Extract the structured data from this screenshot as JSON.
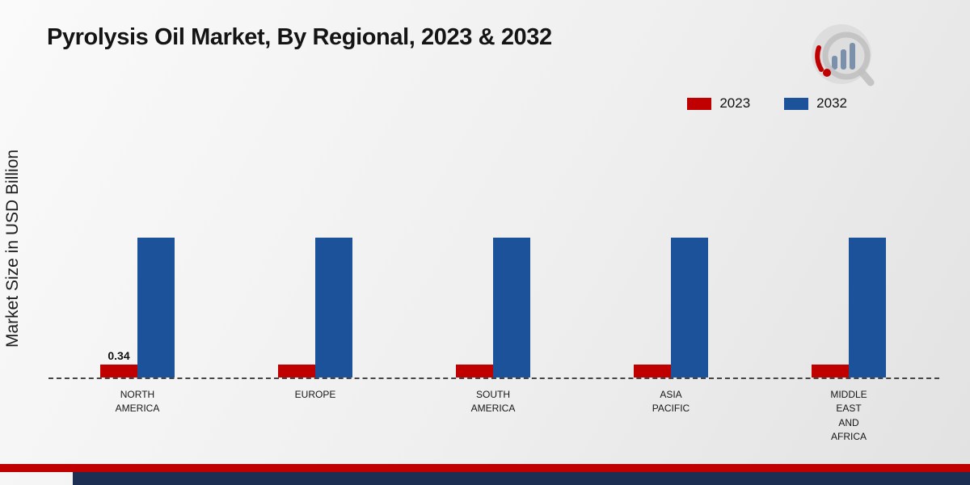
{
  "title": "Pyrolysis Oil Market, By Regional, 2023 & 2032",
  "y_axis_label": "Market Size in USD Billion",
  "legend": [
    {
      "label": "2023",
      "color": "#c00000"
    },
    {
      "label": "2032",
      "color": "#1b5299"
    }
  ],
  "logo_icon": "chart-magnifier-logo",
  "branding": {
    "accent_red": "#c00000",
    "accent_blue": "#1b5299",
    "footer_red": "#c00000",
    "footer_navy": "#1c2e52"
  },
  "chart_data": {
    "type": "bar",
    "categories": [
      "NORTH AMERICA",
      "EUROPE",
      "SOUTH AMERICA",
      "ASIA PACIFIC",
      "MIDDLE EAST AND AFRICA"
    ],
    "series": [
      {
        "name": "2023",
        "color": "#c00000",
        "values": [
          0.34,
          0.33,
          0.33,
          0.33,
          0.33
        ]
      },
      {
        "name": "2032",
        "color": "#1b5299",
        "values": [
          3.6,
          3.6,
          3.6,
          3.6,
          3.6
        ]
      }
    ],
    "annotations": [
      {
        "category_index": 0,
        "series": "2023",
        "text": "0.34"
      }
    ],
    "title": "Pyrolysis Oil Market, By Regional, 2023 & 2032",
    "xlabel": "",
    "ylabel": "Market Size in USD Billion",
    "ylim": [
      0,
      3.75
    ],
    "grid": false,
    "legend_position": "top-right",
    "baseline_style": "dashed"
  }
}
